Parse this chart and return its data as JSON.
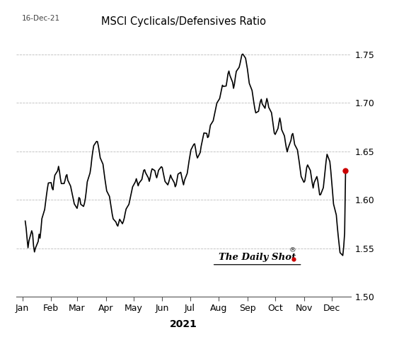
{
  "title": "MSCI Cyclicals/Defensives Ratio",
  "date_label": "16-Dec-21",
  "xlabel": "2021",
  "ylim": [
    1.5,
    1.775
  ],
  "yticks": [
    1.5,
    1.55,
    1.6,
    1.65,
    1.7,
    1.75
  ],
  "line_color": "#000000",
  "line_width": 1.2,
  "bg_color": "#ffffff",
  "grid_color": "#bbbbbb",
  "watermark": "The Daily Shot",
  "watermark_symbol": "®",
  "red_dot_color": "#cc0000",
  "values": [
    1.578,
    1.57,
    1.558,
    1.548,
    1.562,
    1.572,
    1.558,
    1.545,
    1.548,
    1.555,
    1.565,
    1.56,
    1.57,
    1.582,
    1.592,
    1.6,
    1.608,
    1.615,
    1.62,
    1.614,
    1.608,
    1.618,
    1.625,
    1.63,
    1.635,
    1.628,
    1.62,
    1.615,
    1.618,
    1.622,
    1.628,
    1.622,
    1.615,
    1.61,
    1.605,
    1.6,
    1.595,
    1.59,
    1.598,
    1.605,
    1.598,
    1.592,
    1.595,
    1.6,
    1.608,
    1.618,
    1.628,
    1.635,
    1.645,
    1.652,
    1.658,
    1.662,
    1.658,
    1.652,
    1.645,
    1.638,
    1.63,
    1.622,
    1.615,
    1.608,
    1.602,
    1.595,
    1.588,
    1.582,
    1.578,
    1.575,
    1.572,
    1.576,
    1.58,
    1.575,
    1.578,
    1.582,
    1.588,
    1.592,
    1.598,
    1.602,
    1.608,
    1.612,
    1.618,
    1.622,
    1.618,
    1.614,
    1.618,
    1.622,
    1.628,
    1.632,
    1.63,
    1.625,
    1.618,
    1.622,
    1.628,
    1.632,
    1.63,
    1.625,
    1.622,
    1.628,
    1.632,
    1.636,
    1.63,
    1.625,
    1.62,
    1.615,
    1.618,
    1.622,
    1.626,
    1.622,
    1.616,
    1.612,
    1.618,
    1.624,
    1.63,
    1.625,
    1.62,
    1.615,
    1.62,
    1.628,
    1.635,
    1.642,
    1.648,
    1.654,
    1.66,
    1.655,
    1.648,
    1.642,
    1.648,
    1.655,
    1.66,
    1.665,
    1.67,
    1.668,
    1.662,
    1.668,
    1.675,
    1.68,
    1.685,
    1.69,
    1.695,
    1.7,
    1.705,
    1.71,
    1.715,
    1.72,
    1.715,
    1.72,
    1.728,
    1.734,
    1.73,
    1.722,
    1.715,
    1.72,
    1.728,
    1.734,
    1.738,
    1.742,
    1.748,
    1.752,
    1.748,
    1.742,
    1.736,
    1.728,
    1.72,
    1.712,
    1.705,
    1.698,
    1.692,
    1.688,
    1.695,
    1.7,
    1.705,
    1.7,
    1.694,
    1.7,
    1.705,
    1.7,
    1.694,
    1.688,
    1.68,
    1.672,
    1.665,
    1.672,
    1.678,
    1.685,
    1.68,
    1.672,
    1.665,
    1.658,
    1.652,
    1.648,
    1.658,
    1.665,
    1.67,
    1.665,
    1.658,
    1.652,
    1.645,
    1.638,
    1.63,
    1.622,
    1.616,
    1.622,
    1.63,
    1.638,
    1.632,
    1.625,
    1.618,
    1.612,
    1.618,
    1.625,
    1.618,
    1.61,
    1.602,
    1.608,
    1.618,
    1.628,
    1.638,
    1.648,
    1.64,
    1.63,
    1.618,
    1.605,
    1.592,
    1.58,
    1.568,
    1.558,
    1.548,
    1.54,
    1.55,
    1.56,
    1.63
  ]
}
